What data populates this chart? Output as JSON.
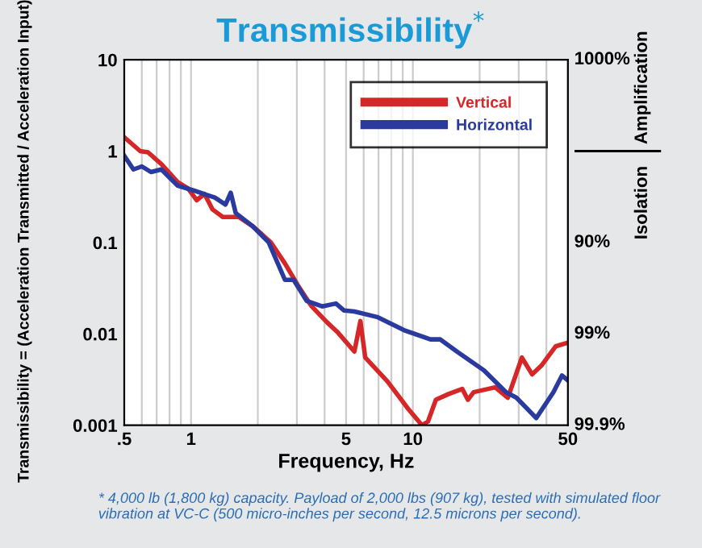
{
  "chart_data": {
    "type": "line",
    "title": "Transmissibility$^{*}$",
    "xlabel": "Frequency, Hz",
    "ylabel": "Transmissibility = (Acceleration Transmitted / Acceleration Input)",
    "y2label": "Amplification",
    "annotations": [
      "Isolation",
      "1000%",
      "90%",
      "99%",
      "99.9%",
      "* 4,000 lb (1,800 kg) capacity. Payload of 2,000 lbs (907 kg), tested with simulated floor vibration at VC-C (500 micro-inches per second, 12.5 microns per second)."
    ],
    "log": "xy",
    "grid": "x",
    "legend": "top right",
    "xlim": [
      0.5,
      50
    ],
    "xticks": [
      {
        "value": 0.5,
        "label": ".5"
      },
      {
        "value": 0.6,
        "label": null
      },
      {
        "value": 0.7,
        "label": null
      },
      {
        "value": 0.8,
        "label": null
      },
      {
        "value": 0.9,
        "label": null
      },
      1,
      {
        "value": 2,
        "label": null
      },
      {
        "value": 3,
        "label": null
      },
      {
        "value": 4,
        "label": null
      },
      5,
      {
        "value": 6,
        "label": null
      },
      {
        "value": 7,
        "label": null
      },
      {
        "value": 8,
        "label": null
      },
      {
        "value": 9,
        "label": null
      },
      10,
      {
        "value": 20,
        "label": null
      },
      {
        "value": 30,
        "label": null
      },
      {
        "value": 40,
        "label": null
      },
      50
    ],
    "ylim": [
      0.001,
      10
    ],
    "yticks": [
      0.001,
      0.01,
      0.1,
      1,
      10
    ],
    "series": [
      {
        "name": "Vertical",
        "color": "#d62728",
        "x": [
          0.5,
          0.59,
          0.64,
          0.735,
          0.87,
          0.97,
          1.06,
          1.15,
          1.25,
          1.39,
          1.64,
          1.9,
          2.11,
          2.29,
          2.65,
          3.03,
          3.5,
          4.1,
          4.6,
          5.45,
          5.8,
          6.1,
          7.7,
          9.55,
          11,
          11.7,
          12.7,
          14.5,
          16.7,
          17.7,
          18.8,
          23.5,
          26.8,
          31,
          34.5,
          38,
          44,
          50
        ],
        "values": [
          1.42,
          1.0,
          0.97,
          0.72,
          0.46,
          0.39,
          0.29,
          0.34,
          0.23,
          0.19,
          0.19,
          0.15,
          0.12,
          0.1,
          0.059,
          0.034,
          0.02,
          0.0134,
          0.0103,
          0.0064,
          0.0138,
          0.0055,
          0.003,
          0.0015,
          0.001,
          0.0011,
          0.0019,
          0.0022,
          0.0025,
          0.0019,
          0.0023,
          0.0026,
          0.002,
          0.0055,
          0.0036,
          0.0045,
          0.0073,
          0.008
        ]
      },
      {
        "name": "Horizontal",
        "color": "#2b3a9e",
        "x": [
          0.5,
          0.55,
          0.6,
          0.66,
          0.735,
          0.87,
          1.03,
          1.28,
          1.43,
          1.51,
          1.59,
          1.9,
          2.24,
          2.65,
          2.9,
          3.32,
          3.9,
          4.5,
          4.9,
          5.45,
          6.9,
          9.1,
          12,
          13.3,
          15.8,
          20.9,
          26.3,
          29.3,
          36,
          43,
          47,
          50
        ],
        "values": [
          0.89,
          0.63,
          0.68,
          0.59,
          0.63,
          0.42,
          0.37,
          0.31,
          0.26,
          0.35,
          0.21,
          0.15,
          0.1,
          0.039,
          0.039,
          0.023,
          0.02,
          0.0215,
          0.018,
          0.0176,
          0.0153,
          0.011,
          0.0087,
          0.0087,
          0.0064,
          0.004,
          0.0023,
          0.002,
          0.0012,
          0.0023,
          0.0035,
          0.0031
        ]
      }
    ]
  }
}
